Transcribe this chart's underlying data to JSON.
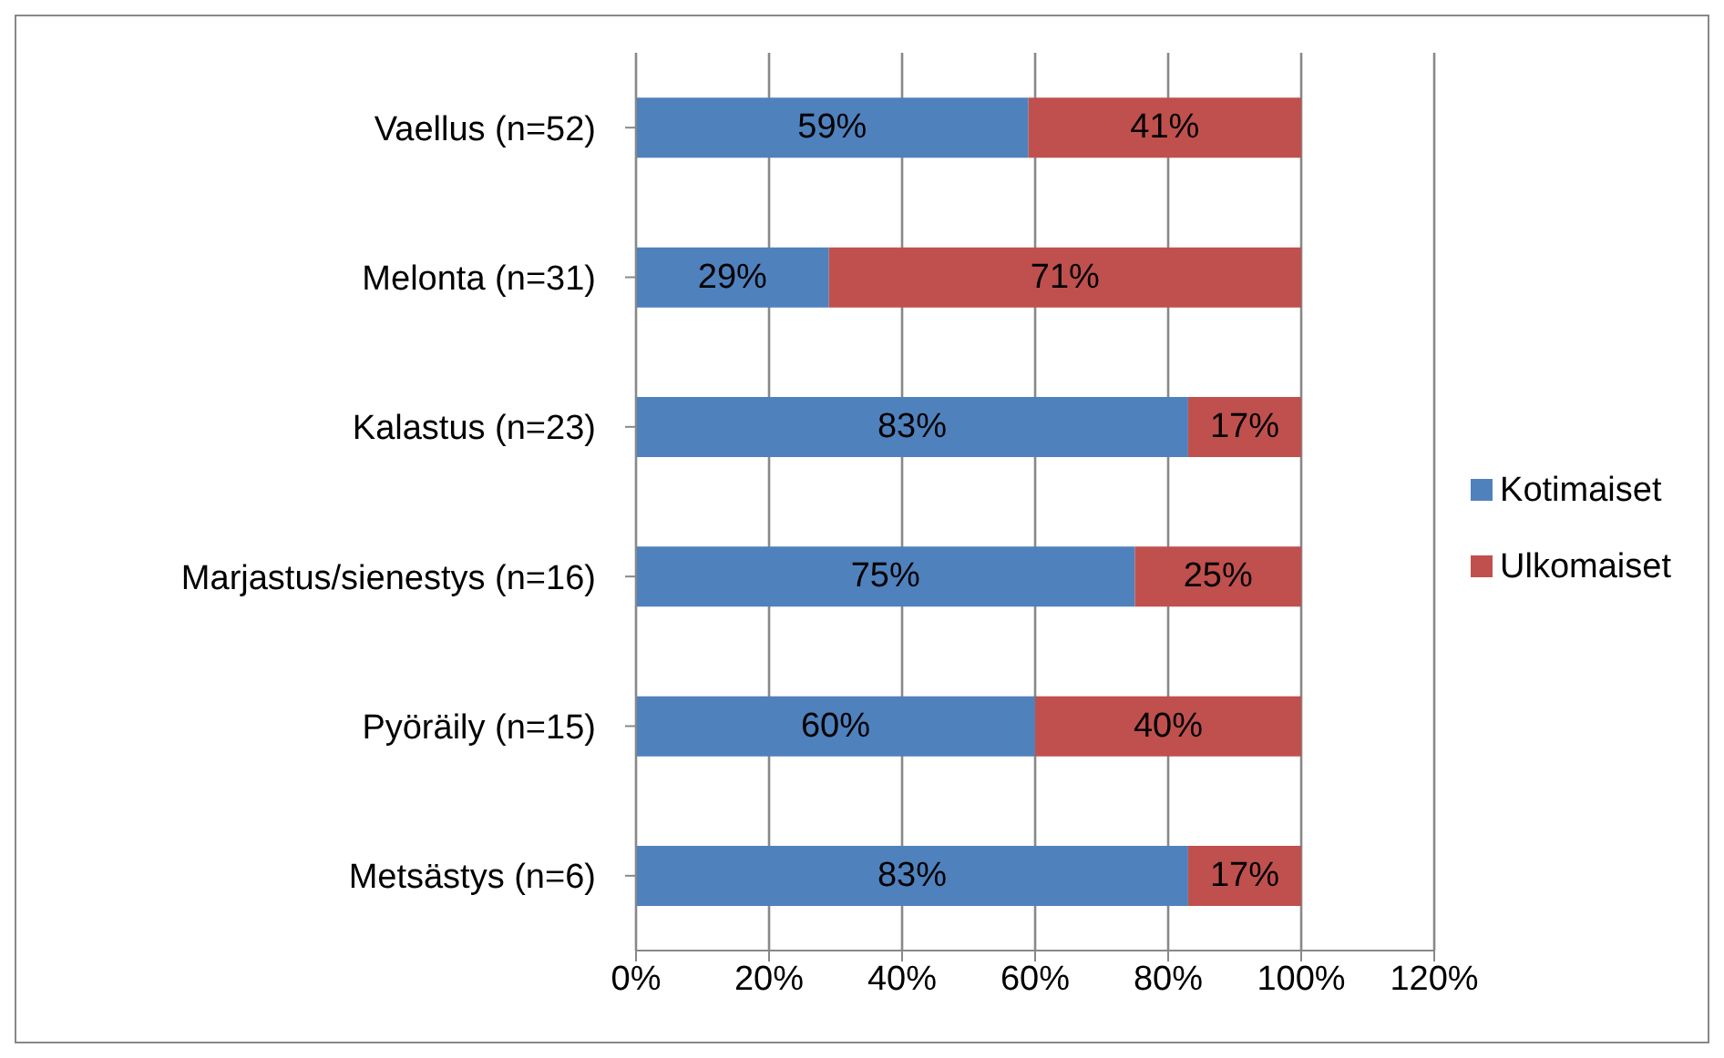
{
  "chart_data": {
    "type": "bar",
    "orientation": "horizontal",
    "stacked": true,
    "categories": [
      "Vaellus (n=52)",
      "Melonta (n=31)",
      "Kalastus (n=23)",
      "Marjastus/sienestys (n=16)",
      "Pyöräily (n=15)",
      "Metsästys (n=6)"
    ],
    "series": [
      {
        "name": "Kotimaiset",
        "color": "#4f81bd",
        "values": [
          59,
          29,
          83,
          75,
          60,
          83
        ],
        "value_labels": [
          "59%",
          "29%",
          "83%",
          "75%",
          "60%",
          "83%"
        ]
      },
      {
        "name": "Ulkomaiset",
        "color": "#c0504d",
        "values": [
          41,
          71,
          17,
          25,
          40,
          17
        ],
        "value_labels": [
          "41%",
          "71%",
          "17%",
          "25%",
          "40%",
          "17%"
        ]
      }
    ],
    "xlim": [
      0,
      120
    ],
    "xticks": [
      {
        "value": 0,
        "label": "0%"
      },
      {
        "value": 20,
        "label": "20%"
      },
      {
        "value": 40,
        "label": "40%"
      },
      {
        "value": 60,
        "label": "60%"
      },
      {
        "value": 80,
        "label": "80%"
      },
      {
        "value": 100,
        "label": "100%"
      },
      {
        "value": 120,
        "label": "120%"
      }
    ],
    "grid": "x",
    "legend": "right"
  }
}
